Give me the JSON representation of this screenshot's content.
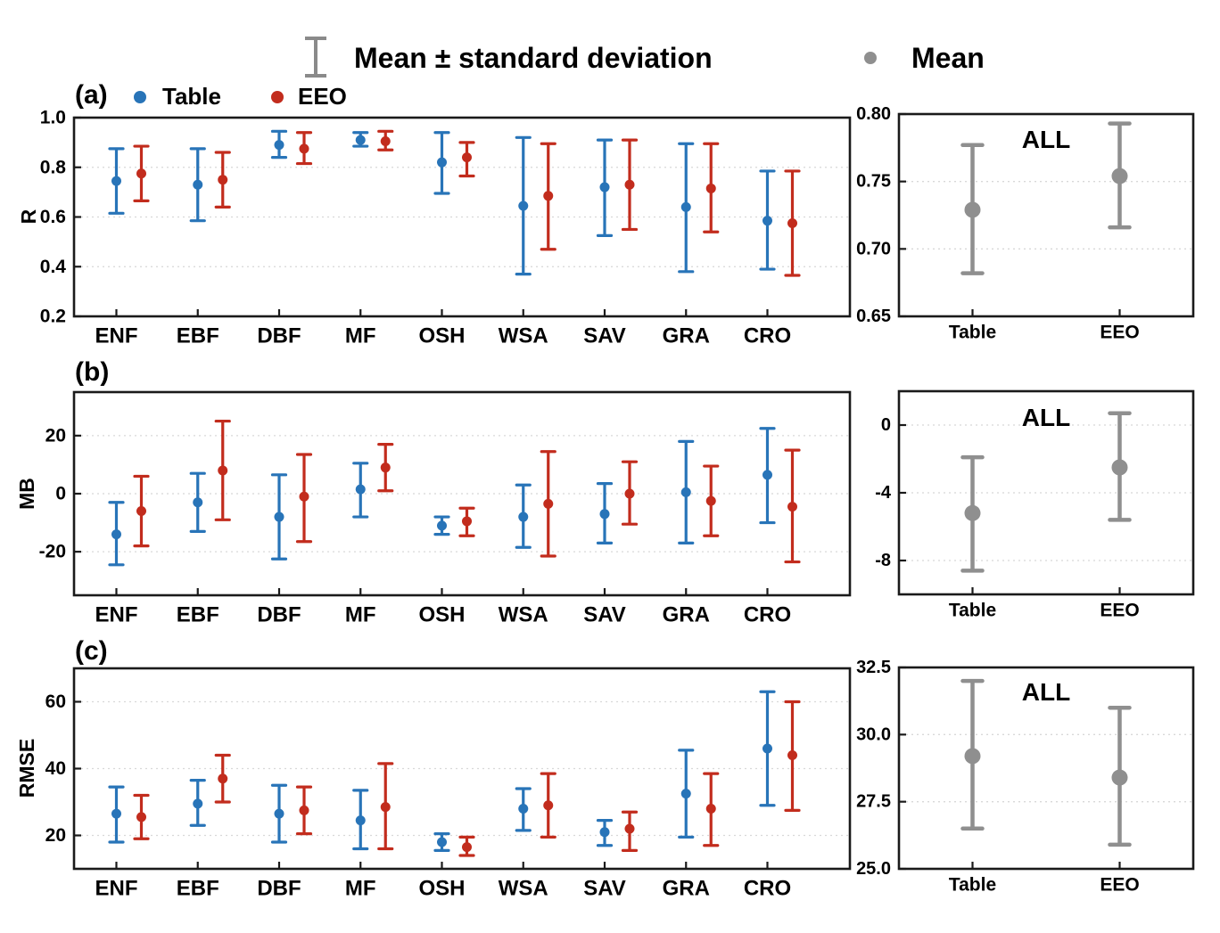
{
  "figure_legend": {
    "errorbar_label": "Mean ± standard deviation",
    "mean_label": "Mean",
    "errorbar_icon_color": "#8a8a8a",
    "mean_dot_color": "#8f8f8f"
  },
  "panels": {
    "a": "(a)",
    "b": "(b)",
    "c": "(c)"
  },
  "colors": {
    "table": "#2874b8",
    "eeo": "#c22c1d",
    "mean": "#8f8f8f",
    "axis": "#1a1a1a",
    "grid": "#d8d8d8"
  },
  "chart_data": [
    {
      "panel": "a",
      "ylabel": "R",
      "main": {
        "type": "scatter",
        "errorbars": "mean ± standard deviation",
        "grid": true,
        "categories": [
          "ENF",
          "EBF",
          "DBF",
          "MF",
          "OSH",
          "WSA",
          "SAV",
          "GRA",
          "CRO"
        ],
        "ylim": [
          0.2,
          1.0
        ],
        "yticks": [
          {
            "v": 1.0,
            "label": "1.0"
          },
          {
            "v": 0.8,
            "label": "0.8"
          },
          {
            "v": 0.6,
            "label": "0.6"
          },
          {
            "v": 0.4,
            "label": "0.4"
          },
          {
            "v": 0.2,
            "label": "0.2"
          }
        ],
        "series": [
          {
            "name": "Table",
            "color": "#2874b8",
            "mean": [
              0.745,
              0.73,
              0.89,
              0.91,
              0.82,
              0.645,
              0.72,
              0.64,
              0.585
            ],
            "lo": [
              0.615,
              0.585,
              0.84,
              0.885,
              0.695,
              0.37,
              0.525,
              0.38,
              0.39
            ],
            "hi": [
              0.875,
              0.875,
              0.945,
              0.94,
              0.94,
              0.92,
              0.91,
              0.895,
              0.785
            ]
          },
          {
            "name": "EEO",
            "color": "#c22c1d",
            "mean": [
              0.775,
              0.75,
              0.875,
              0.905,
              0.84,
              0.685,
              0.73,
              0.715,
              0.575
            ],
            "lo": [
              0.665,
              0.64,
              0.815,
              0.87,
              0.765,
              0.47,
              0.55,
              0.54,
              0.365
            ],
            "hi": [
              0.885,
              0.86,
              0.94,
              0.945,
              0.9,
              0.895,
              0.91,
              0.895,
              0.785
            ]
          }
        ]
      },
      "all": {
        "type": "scatter",
        "title": "ALL",
        "grid": true,
        "categories": [
          "Table",
          "EEO"
        ],
        "ylim": [
          0.65,
          0.8
        ],
        "yticks": [
          {
            "v": 0.8,
            "label": "0.80"
          },
          {
            "v": 0.75,
            "label": "0.75"
          },
          {
            "v": 0.7,
            "label": "0.70"
          },
          {
            "v": 0.65,
            "label": "0.65"
          }
        ],
        "series": [
          {
            "name": "Mean",
            "color": "#8f8f8f",
            "mean": [
              0.729,
              0.754
            ],
            "lo": [
              0.682,
              0.716
            ],
            "hi": [
              0.777,
              0.793
            ]
          }
        ]
      }
    },
    {
      "panel": "b",
      "ylabel": "MB",
      "main": {
        "type": "scatter",
        "errorbars": "mean ± standard deviation",
        "grid": true,
        "categories": [
          "ENF",
          "EBF",
          "DBF",
          "MF",
          "OSH",
          "WSA",
          "SAV",
          "GRA",
          "CRO"
        ],
        "ylim": [
          -35,
          35
        ],
        "yticks": [
          {
            "v": 20,
            "label": "20"
          },
          {
            "v": 0,
            "label": "0"
          },
          {
            "v": -20,
            "label": "-20"
          }
        ],
        "series": [
          {
            "name": "Table",
            "color": "#2874b8",
            "mean": [
              -14,
              -3,
              -8,
              1.5,
              -11,
              -8,
              -7,
              0.5,
              6.5
            ],
            "lo": [
              -24.5,
              -13,
              -22.5,
              -8,
              -14,
              -18.5,
              -17,
              -17,
              -10
            ],
            "hi": [
              -3,
              7,
              6.5,
              10.5,
              -8,
              3,
              3.5,
              18,
              22.5
            ]
          },
          {
            "name": "EEO",
            "color": "#c22c1d",
            "mean": [
              -6,
              8,
              -1,
              9,
              -9.5,
              -3.5,
              0,
              -2.5,
              -4.5
            ],
            "lo": [
              -18,
              -9,
              -16.5,
              1,
              -14.5,
              -21.5,
              -10.5,
              -14.5,
              -23.5
            ],
            "hi": [
              6,
              25,
              13.5,
              17,
              -5,
              14.5,
              11,
              9.5,
              15
            ]
          }
        ]
      },
      "all": {
        "type": "scatter",
        "title": "ALL",
        "grid": true,
        "categories": [
          "Table",
          "EEO"
        ],
        "ylim": [
          -10,
          2
        ],
        "yticks": [
          {
            "v": 0,
            "label": "0"
          },
          {
            "v": -4,
            "label": "-4"
          },
          {
            "v": -8,
            "label": "-8"
          }
        ],
        "series": [
          {
            "name": "Mean",
            "color": "#8f8f8f",
            "mean": [
              -5.2,
              -2.5
            ],
            "lo": [
              -8.6,
              -5.6
            ],
            "hi": [
              -1.9,
              0.7
            ]
          }
        ]
      }
    },
    {
      "panel": "c",
      "ylabel": "RMSE",
      "main": {
        "type": "scatter",
        "errorbars": "mean ± standard deviation",
        "grid": true,
        "categories": [
          "ENF",
          "EBF",
          "DBF",
          "MF",
          "OSH",
          "WSA",
          "SAV",
          "GRA",
          "CRO"
        ],
        "ylim": [
          10,
          70
        ],
        "yticks": [
          {
            "v": 60,
            "label": "60"
          },
          {
            "v": 40,
            "label": "40"
          },
          {
            "v": 20,
            "label": "20"
          }
        ],
        "series": [
          {
            "name": "Table",
            "color": "#2874b8",
            "mean": [
              26.5,
              29.5,
              26.5,
              24.5,
              18,
              28,
              21,
              32.5,
              46
            ],
            "lo": [
              18,
              23,
              18,
              16,
              15.5,
              21.5,
              17,
              19.5,
              29
            ],
            "hi": [
              34.5,
              36.5,
              35,
              33.5,
              20.5,
              34,
              24.5,
              45.5,
              63
            ]
          },
          {
            "name": "EEO",
            "color": "#c22c1d",
            "mean": [
              25.5,
              37,
              27.5,
              28.5,
              16.5,
              29,
              22,
              28,
              44
            ],
            "lo": [
              19,
              30,
              20.5,
              16,
              14,
              19.5,
              15.5,
              17,
              27.5
            ],
            "hi": [
              32,
              44,
              34.5,
              41.5,
              19.5,
              38.5,
              27,
              38.5,
              60
            ]
          }
        ]
      },
      "all": {
        "type": "scatter",
        "title": "ALL",
        "grid": true,
        "categories": [
          "Table",
          "EEO"
        ],
        "ylim": [
          25.0,
          32.5
        ],
        "yticks": [
          {
            "v": 32.5,
            "label": "32.5"
          },
          {
            "v": 30.0,
            "label": "30.0"
          },
          {
            "v": 27.5,
            "label": "27.5"
          },
          {
            "v": 25.0,
            "label": "25.0"
          }
        ],
        "series": [
          {
            "name": "Mean",
            "color": "#8f8f8f",
            "mean": [
              29.2,
              28.4
            ],
            "lo": [
              26.5,
              25.9
            ],
            "hi": [
              32.0,
              31.0
            ]
          }
        ]
      }
    }
  ]
}
